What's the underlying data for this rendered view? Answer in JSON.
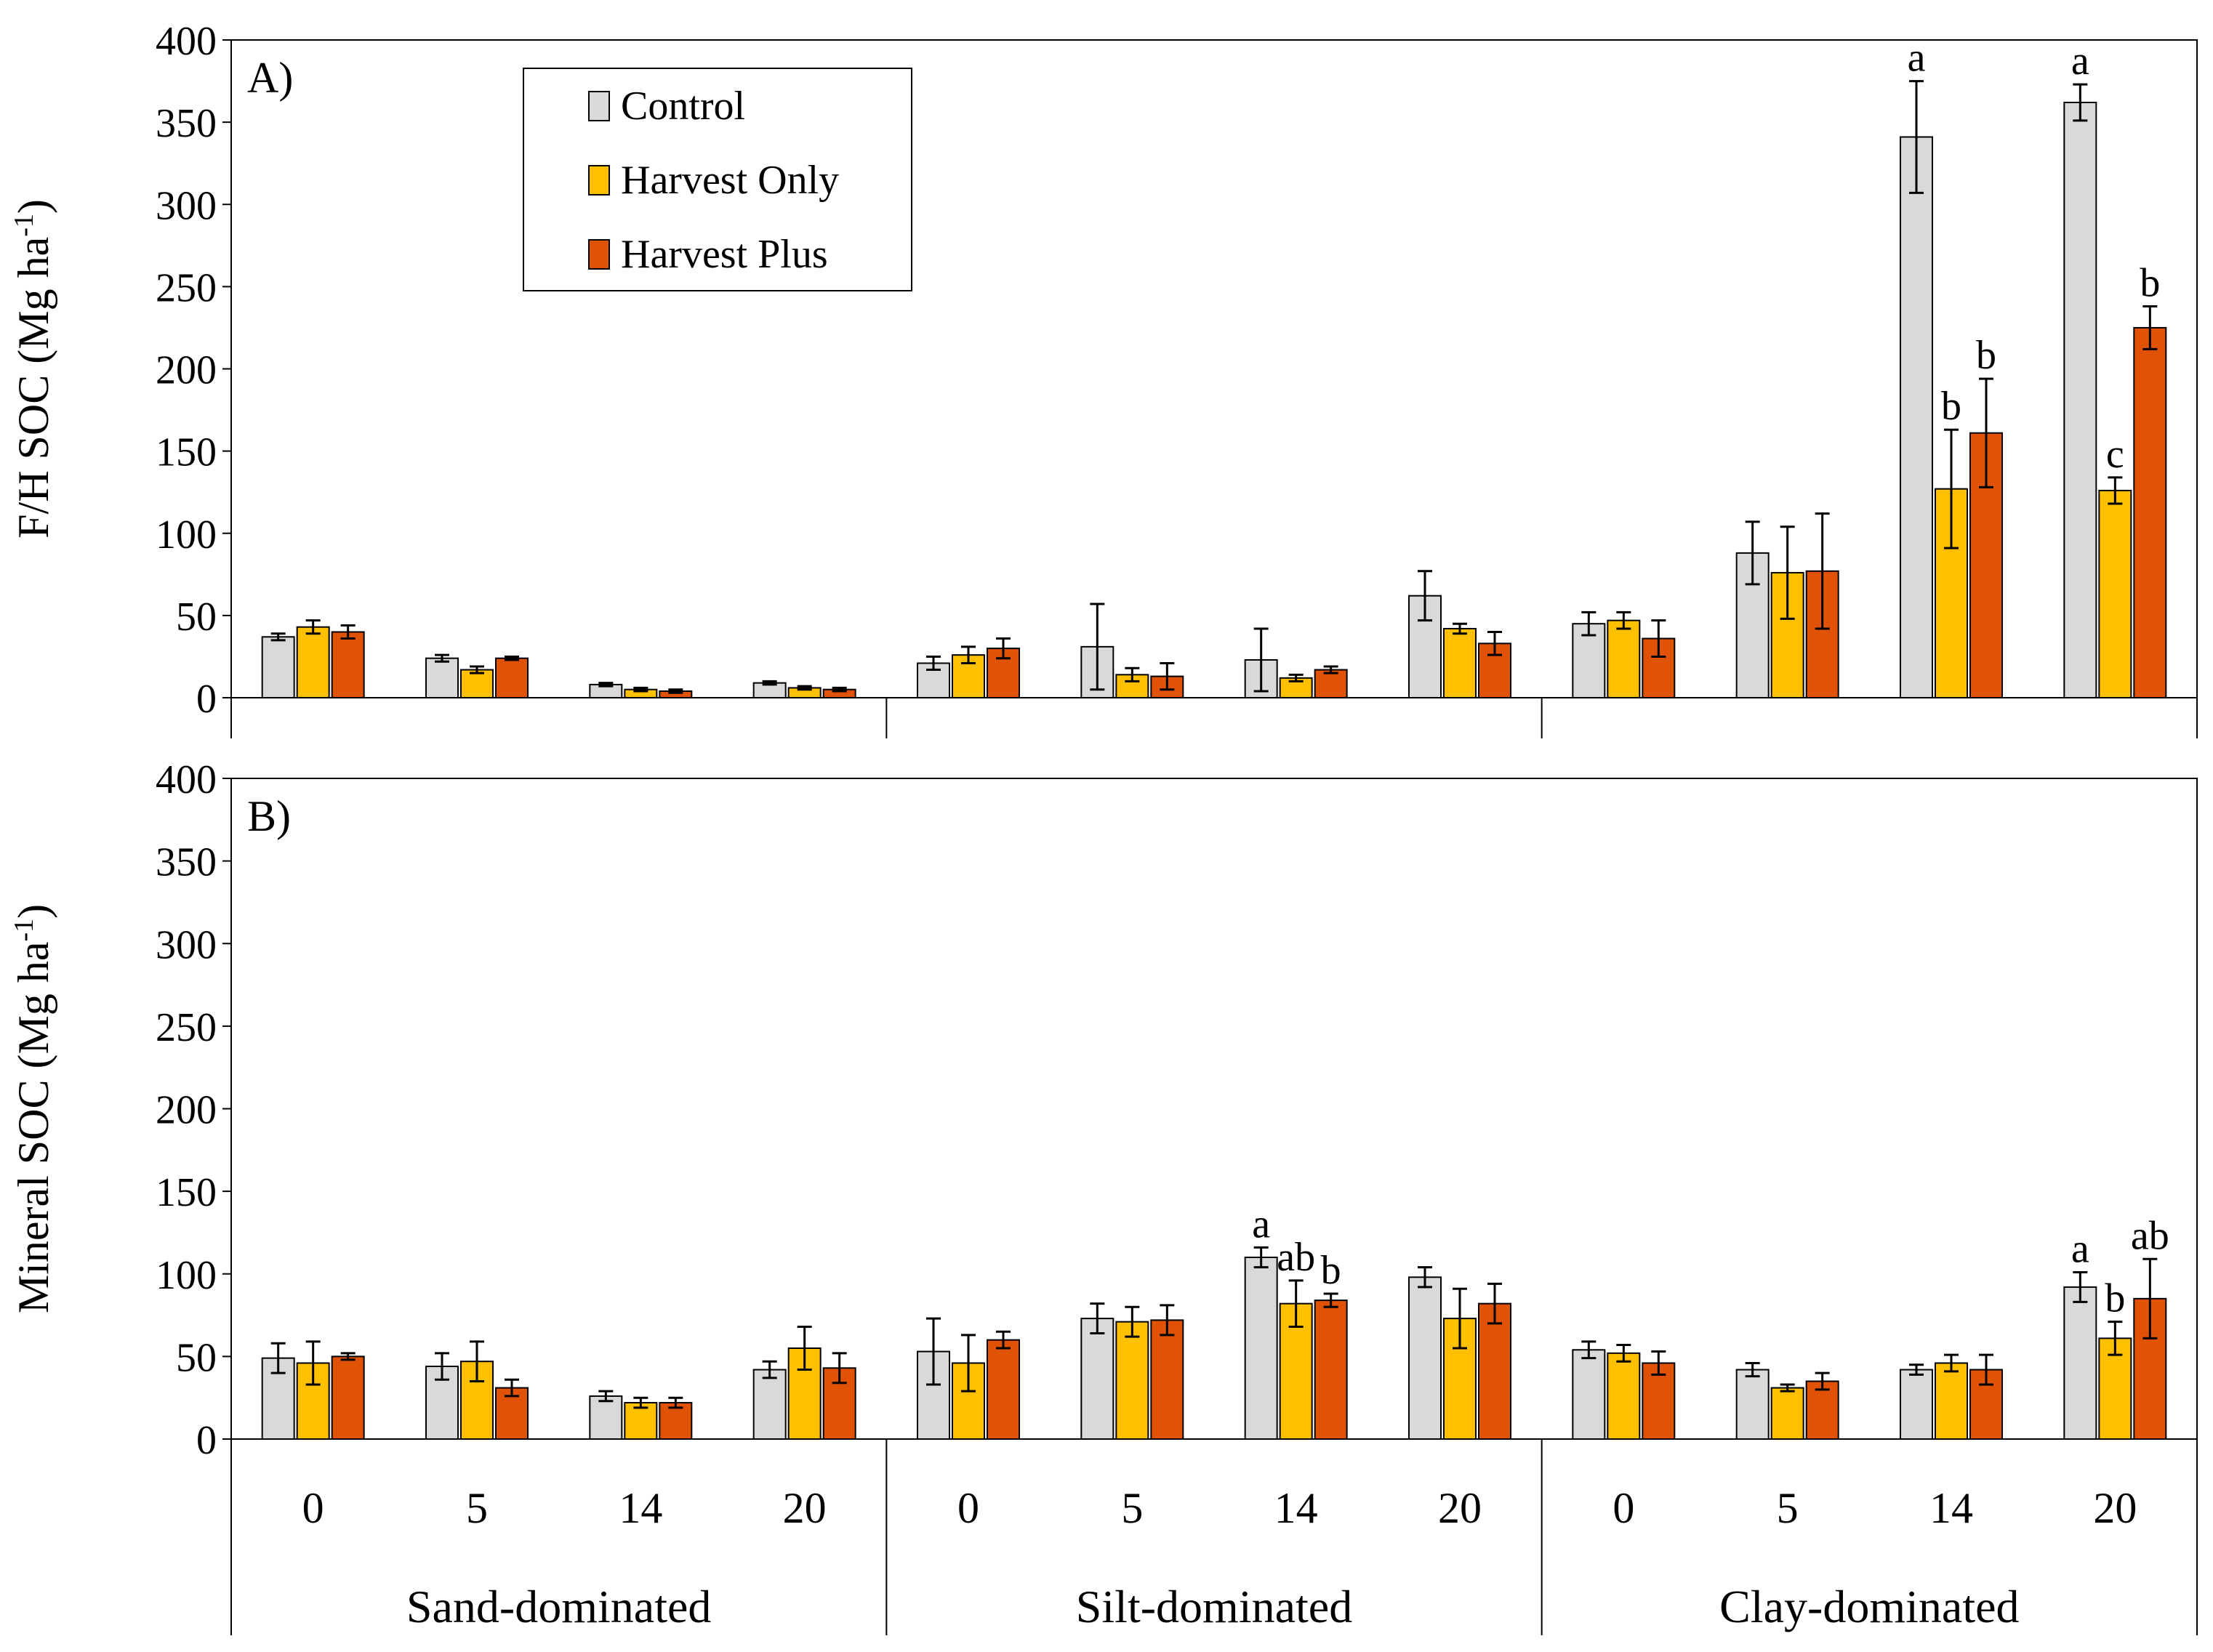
{
  "chart_data": {
    "type": "bar",
    "series_names": [
      "Control",
      "Harvest Only",
      "Harvest Plus"
    ],
    "colors": {
      "Control": "#d9d9d9",
      "Harvest Only": "#ffc000",
      "Harvest Plus": "#e05206",
      "outline": "#000000"
    },
    "groups": [
      {
        "name": "Sand-dominated",
        "ages": [
          "0",
          "5",
          "14",
          "20"
        ]
      },
      {
        "name": "Silt-dominated",
        "ages": [
          "0",
          "5",
          "14",
          "20"
        ]
      },
      {
        "name": "Clay-dominated",
        "ages": [
          "0",
          "5",
          "14",
          "20"
        ]
      }
    ],
    "panels": [
      {
        "label": "A)",
        "ylabel": "F/H SOC (Mg ha",
        "ylabel_sup": "-1",
        "ylabel_close": ")",
        "ylim": [
          0,
          400
        ],
        "yticks": [
          "0",
          "50",
          "100",
          "150",
          "200",
          "250",
          "300",
          "350",
          "400"
        ],
        "show_legend": true,
        "values": [
          [
            37,
            43,
            40
          ],
          [
            24,
            17,
            24
          ],
          [
            8,
            5,
            4
          ],
          [
            9,
            6,
            5
          ],
          [
            21,
            26,
            30
          ],
          [
            31,
            14,
            13
          ],
          [
            23,
            12,
            17
          ],
          [
            62,
            42,
            33
          ],
          [
            45,
            47,
            36
          ],
          [
            88,
            76,
            77
          ],
          [
            341,
            127,
            161
          ],
          [
            362,
            126,
            225
          ]
        ],
        "errors": [
          [
            2,
            4,
            4
          ],
          [
            2,
            2,
            1
          ],
          [
            1,
            1,
            1
          ],
          [
            1,
            1,
            1
          ],
          [
            4,
            5,
            6
          ],
          [
            26,
            4,
            8
          ],
          [
            19,
            2,
            2
          ],
          [
            15,
            3,
            7
          ],
          [
            7,
            5,
            11
          ],
          [
            19,
            28,
            35
          ],
          [
            34,
            36,
            33
          ],
          [
            11,
            8,
            13
          ]
        ],
        "letters": [
          [
            "",
            "",
            ""
          ],
          [
            "",
            "",
            ""
          ],
          [
            "",
            "",
            ""
          ],
          [
            "",
            "",
            ""
          ],
          [
            "",
            "",
            ""
          ],
          [
            "",
            "",
            ""
          ],
          [
            "",
            "",
            ""
          ],
          [
            "",
            "",
            ""
          ],
          [
            "",
            "",
            ""
          ],
          [
            "",
            "",
            ""
          ],
          [
            "a",
            "b",
            "b"
          ],
          [
            "a",
            "c",
            "b"
          ]
        ]
      },
      {
        "label": "B)",
        "ylabel": "Mineral SOC (Mg ha",
        "ylabel_sup": "-1",
        "ylabel_close": ")",
        "ylim": [
          0,
          400
        ],
        "yticks": [
          "0",
          "50",
          "100",
          "150",
          "200",
          "250",
          "300",
          "350",
          "400"
        ],
        "show_legend": false,
        "values": [
          [
            49,
            46,
            50
          ],
          [
            44,
            47,
            31
          ],
          [
            26,
            22,
            22
          ],
          [
            42,
            55,
            43
          ],
          [
            53,
            46,
            60
          ],
          [
            73,
            71,
            72
          ],
          [
            110,
            82,
            84
          ],
          [
            98,
            73,
            82
          ],
          [
            54,
            52,
            46
          ],
          [
            42,
            31,
            35
          ],
          [
            42,
            46,
            42
          ],
          [
            92,
            61,
            85
          ]
        ],
        "errors": [
          [
            9,
            13,
            2
          ],
          [
            8,
            12,
            5
          ],
          [
            3,
            3,
            3
          ],
          [
            5,
            13,
            9
          ],
          [
            20,
            17,
            5
          ],
          [
            9,
            9,
            9
          ],
          [
            6,
            14,
            4
          ],
          [
            6,
            18,
            12
          ],
          [
            5,
            5,
            7
          ],
          [
            4,
            2,
            5
          ],
          [
            3,
            5,
            9
          ],
          [
            9,
            10,
            24
          ]
        ],
        "letters": [
          [
            "",
            "",
            ""
          ],
          [
            "",
            "",
            ""
          ],
          [
            "",
            "",
            ""
          ],
          [
            "",
            "",
            ""
          ],
          [
            "",
            "",
            ""
          ],
          [
            "",
            "",
            ""
          ],
          [
            "a",
            "ab",
            "b"
          ],
          [
            "",
            "",
            ""
          ],
          [
            "",
            "",
            ""
          ],
          [
            "",
            "",
            ""
          ],
          [
            "",
            "",
            ""
          ],
          [
            "a",
            "b",
            "ab"
          ]
        ]
      }
    ]
  }
}
